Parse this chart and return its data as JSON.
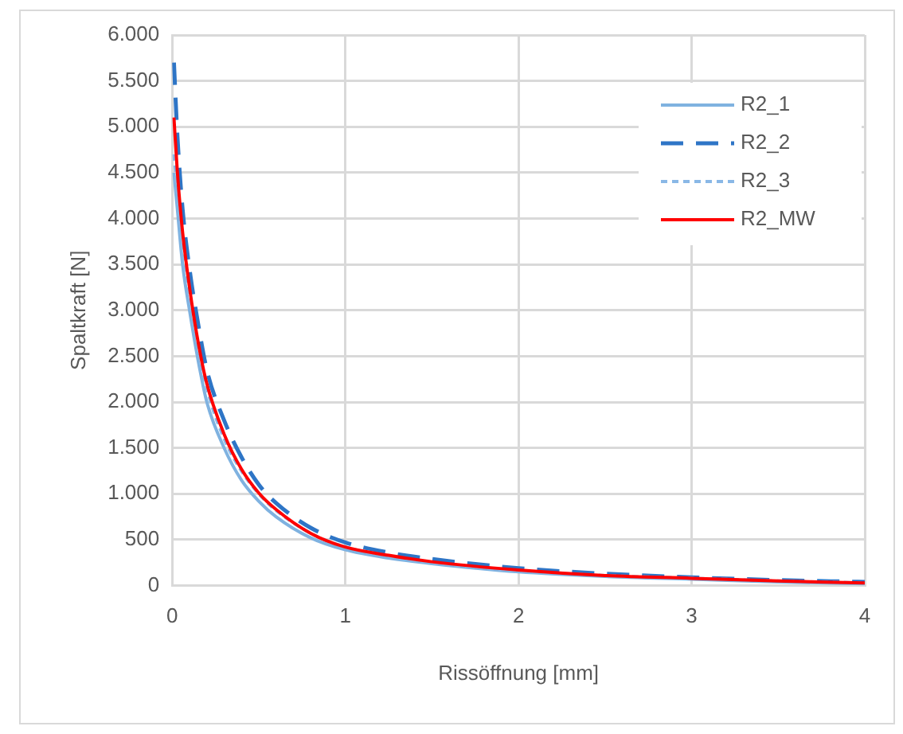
{
  "chart_data": {
    "type": "line",
    "xlabel": "Rissöffnung [mm]",
    "ylabel": "Spaltkraft [N]",
    "xlim": [
      0,
      4
    ],
    "xticks": [
      0,
      1,
      2,
      3,
      4
    ],
    "ylim": [
      0,
      6000
    ],
    "yticks": [
      {
        "value": 0,
        "label": "0"
      },
      {
        "value": 500,
        "label": "500"
      },
      {
        "value": 1000,
        "label": "1.000"
      },
      {
        "value": 1500,
        "label": "1.500"
      },
      {
        "value": 2000,
        "label": "2.000"
      },
      {
        "value": 2500,
        "label": "2.500"
      },
      {
        "value": 3000,
        "label": "3.000"
      },
      {
        "value": 3500,
        "label": "3.500"
      },
      {
        "value": 4000,
        "label": "4.000"
      },
      {
        "value": 4500,
        "label": "4.500"
      },
      {
        "value": 5000,
        "label": "5.000"
      },
      {
        "value": 5500,
        "label": "5.500"
      },
      {
        "value": 6000,
        "label": "6.000"
      }
    ],
    "grid": true,
    "legend": "top right",
    "marker": "none",
    "x": [
      0.01,
      0.03,
      0.06,
      0.1,
      0.15,
      0.2,
      0.3,
      0.4,
      0.5,
      0.6,
      0.8,
      1,
      1.25,
      1.5,
      2,
      2.5,
      3,
      3.5,
      4
    ],
    "series": [
      {
        "name": "R2_1",
        "color": "#7fb2e0",
        "line_style": "solid",
        "values": [
          4500,
          4100,
          3500,
          3000,
          2450,
          2000,
          1500,
          1150,
          920,
          750,
          520,
          390,
          300,
          240,
          150,
          100,
          70,
          40,
          20
        ]
      },
      {
        "name": "R2_2",
        "color": "#2e75c6",
        "line_style": "dashed",
        "values": [
          5700,
          4900,
          4100,
          3450,
          2850,
          2350,
          1800,
          1400,
          1100,
          900,
          630,
          470,
          360,
          290,
          190,
          130,
          90,
          60,
          40
        ]
      },
      {
        "name": "R2_3",
        "color": "#8ab8e6",
        "line_style": "dotted",
        "values": [
          4700,
          4300,
          3700,
          3150,
          2600,
          2150,
          1600,
          1250,
          1000,
          820,
          570,
          420,
          320,
          250,
          160,
          110,
          80,
          50,
          30
        ]
      },
      {
        "name": "R2_MW",
        "color": "#ff0000",
        "line_style": "solid",
        "values": [
          5100,
          4500,
          3850,
          3250,
          2650,
          2200,
          1650,
          1270,
          1010,
          830,
          570,
          420,
          330,
          260,
          170,
          110,
          80,
          50,
          30
        ]
      }
    ]
  }
}
